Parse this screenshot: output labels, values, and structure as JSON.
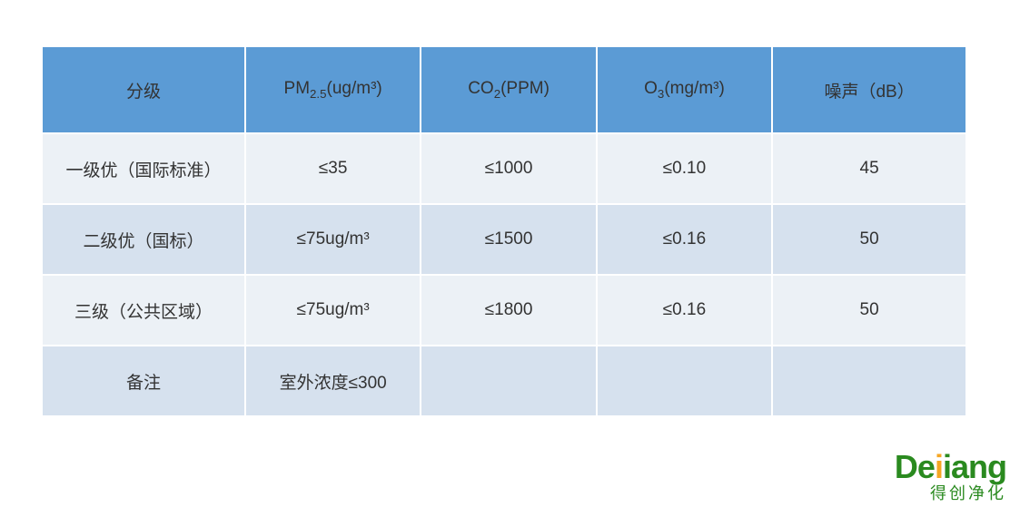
{
  "table": {
    "header_bg": "#5b9bd5",
    "row_odd_bg": "#ecf1f6",
    "row_even_bg": "#d6e1ee",
    "border_color": "#ffffff",
    "text_color": "#333333",
    "header_fontsize": 19,
    "cell_fontsize": 19,
    "columns": [
      {
        "label": "分级"
      },
      {
        "label_html": "PM<sub>2.5</sub>(ug/m³)"
      },
      {
        "label_html": "CO<sub>2</sub>(PPM)"
      },
      {
        "label_html": "O<sub>3</sub>(mg/m³)"
      },
      {
        "label": "噪声（dB）"
      }
    ],
    "rows": [
      [
        "一级优（国际标准）",
        "≤35",
        "≤1000",
        "≤0.10",
        "45"
      ],
      [
        "二级优（国标）",
        "≤75ug/m³",
        "≤1500",
        "≤0.16",
        "50"
      ],
      [
        "三级（公共区域）",
        "≤75ug/m³",
        "≤1800",
        "≤0.16",
        "50"
      ],
      [
        "备注",
        "室外浓度≤300",
        "",
        "",
        ""
      ]
    ]
  },
  "logo": {
    "text_main_prefix": "De",
    "text_main_accent": "i",
    "text_main_suffix_a": "i",
    "text_main_suffix_b": "ang",
    "text_sub": "得创净化",
    "main_color": "#2a8a1f",
    "accent_color": "#f5a623"
  }
}
